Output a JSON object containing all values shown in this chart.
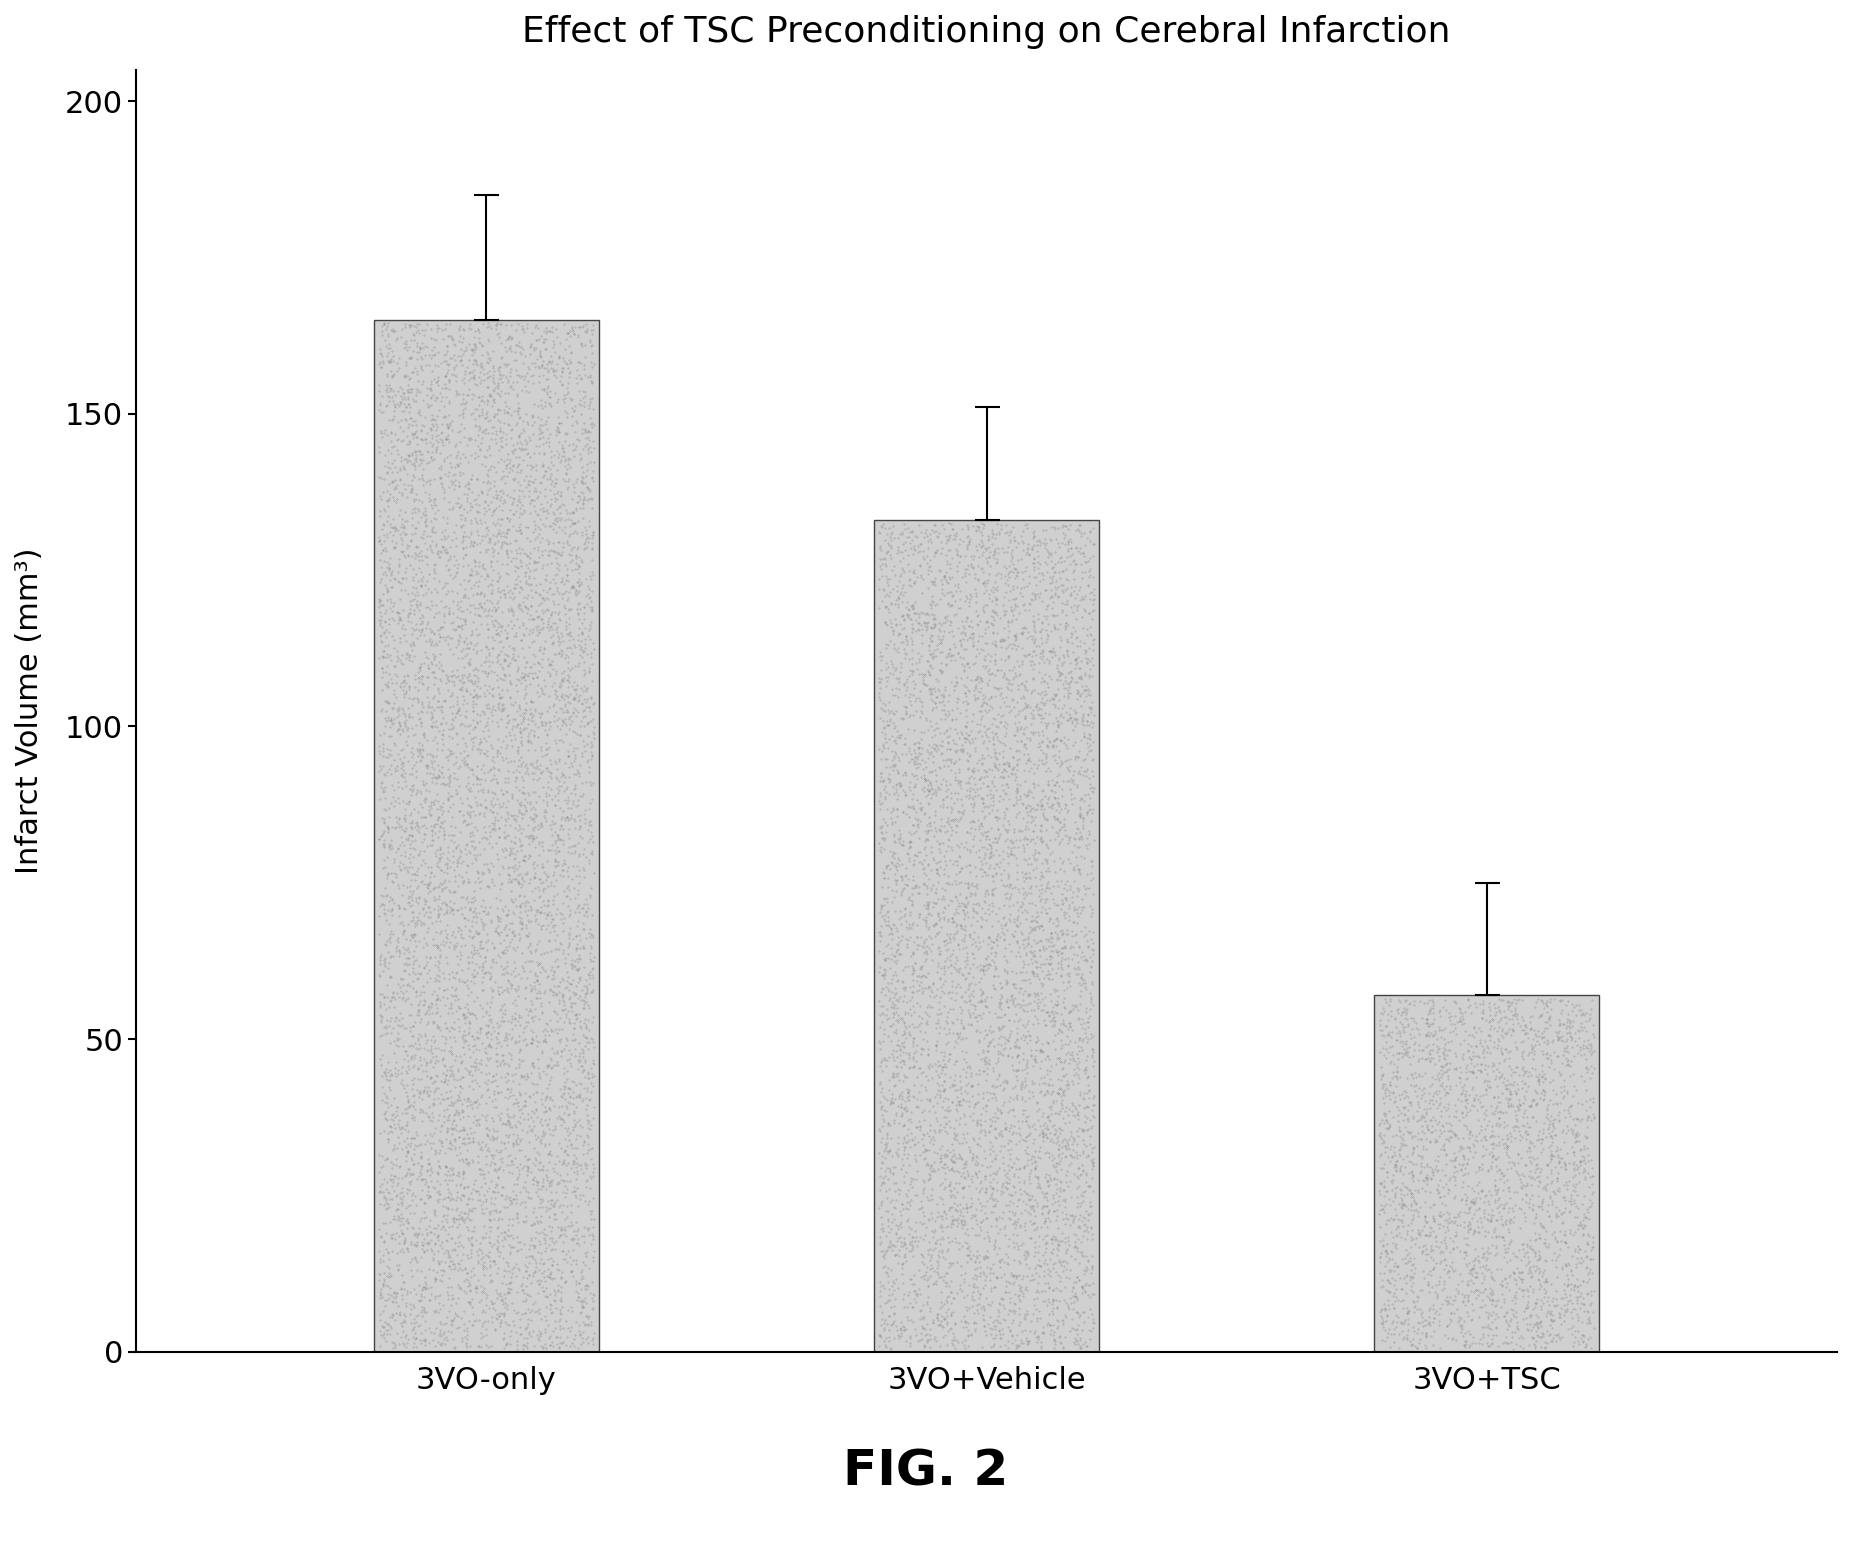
{
  "title": "Effect of TSC Preconditioning on Cerebral Infarction",
  "ylabel": "Infarct Volume (mm³)",
  "categories": [
    "3VO-only",
    "3VO+Vehicle",
    "3VO+TSC"
  ],
  "values": [
    165,
    133,
    57
  ],
  "errors_upper": [
    20,
    18,
    18
  ],
  "ylim": [
    0,
    205
  ],
  "yticks": [
    0,
    50,
    100,
    150,
    200
  ],
  "bar_color": "#d0d0d0",
  "bar_edgecolor": "#444444",
  "background_color": "#ffffff",
  "title_fontsize": 26,
  "ylabel_fontsize": 22,
  "xlabel_fontsize": 22,
  "tick_fontsize": 22,
  "caption": "FIG. 2",
  "caption_fontsize": 36,
  "bar_width": 0.45
}
